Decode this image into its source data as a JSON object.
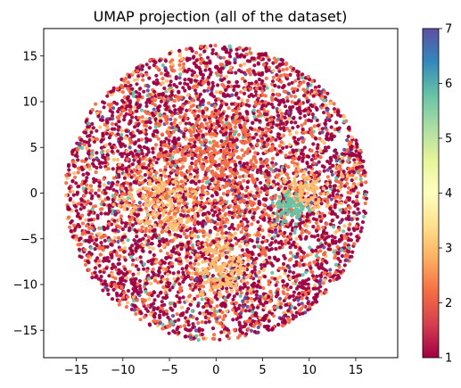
{
  "chart_data": {
    "type": "scatter",
    "title": "UMAP projection (all of the dataset)",
    "xlabel": "",
    "ylabel": "",
    "xlim": [
      -18.5,
      19.5
    ],
    "ylim": [
      -18,
      18
    ],
    "xticks": [
      -15,
      -10,
      -5,
      0,
      5,
      10,
      15
    ],
    "yticks": [
      15,
      10,
      5,
      0,
      -5,
      -10,
      -15
    ],
    "colorbar": {
      "colormap": "Spectral",
      "range": [
        1,
        7
      ],
      "ticks": [
        1,
        2,
        3,
        4,
        5,
        6,
        7
      ]
    },
    "grid": false,
    "cloud": {
      "shape": "disk",
      "center": [
        0,
        0
      ],
      "radius": 16.2,
      "point_count": 5200,
      "value_distribution": [
        {
          "value": 1,
          "share": 0.55
        },
        {
          "value": 2,
          "share": 0.3
        },
        {
          "value": 3,
          "share": 0.07
        },
        {
          "value": 5,
          "share": 0.04
        },
        {
          "value": 7,
          "share": 0.04
        }
      ],
      "clusters": [
        {
          "value": 3,
          "center": [
            -6,
            -1
          ],
          "spread": 2.2
        },
        {
          "value": 3,
          "center": [
            1,
            -8
          ],
          "spread": 1.6
        },
        {
          "value": 3,
          "center": [
            9,
            0
          ],
          "spread": 1.2
        },
        {
          "value": 5,
          "center": [
            8,
            -1.5
          ],
          "spread": 0.8
        },
        {
          "value": 2,
          "center": [
            0,
            3
          ],
          "spread": 3.5
        }
      ]
    }
  }
}
